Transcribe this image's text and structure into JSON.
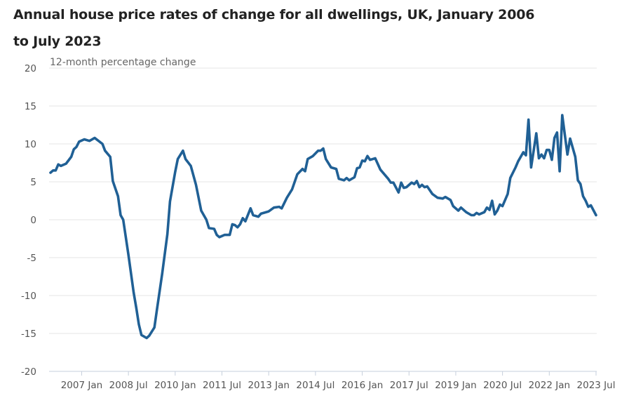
{
  "chart_data": {
    "type": "line",
    "title": "Annual house price rates of change for all dwellings, UK, January 2006 to July 2023",
    "ylabel": "12-month percentage change",
    "xlabel": "",
    "ylim": [
      -20,
      20
    ],
    "yticks": [
      "20",
      "15",
      "10",
      "5",
      "0",
      "-5",
      "-10",
      "-15",
      "-20"
    ],
    "xticks": [
      {
        "date": "2007-01",
        "label": "2007 Jan"
      },
      {
        "date": "2008-07",
        "label": "2008 Jul"
      },
      {
        "date": "2010-01",
        "label": "2010 Jan"
      },
      {
        "date": "2011-07",
        "label": "2011 Jul"
      },
      {
        "date": "2013-01",
        "label": "2013 Jan"
      },
      {
        "date": "2014-07",
        "label": "2014 Jul"
      },
      {
        "date": "2016-01",
        "label": "2016 Jan"
      },
      {
        "date": "2017-07",
        "label": "2017 Jul"
      },
      {
        "date": "2019-01",
        "label": "2019 Jan"
      },
      {
        "date": "2020-07",
        "label": "2020 Jul"
      },
      {
        "date": "2022-01",
        "label": "2022 Jan"
      },
      {
        "date": "2023-07",
        "label": "2023 Jul"
      }
    ],
    "xlim": [
      "2006-01",
      "2023-07"
    ],
    "grid": true,
    "line_color": "#206095",
    "series": [
      {
        "points": [
          [
            "2006-01",
            6.2
          ],
          [
            "2006-02",
            6.5
          ],
          [
            "2006-03",
            6.5
          ],
          [
            "2006-04",
            7.3
          ],
          [
            "2006-05",
            7.1
          ],
          [
            "2006-07",
            7.4
          ],
          [
            "2006-09",
            8.3
          ],
          [
            "2006-10",
            9.3
          ],
          [
            "2006-11",
            9.6
          ],
          [
            "2006-12",
            10.3
          ],
          [
            "2007-02",
            10.6
          ],
          [
            "2007-04",
            10.4
          ],
          [
            "2007-06",
            10.8
          ],
          [
            "2007-09",
            10.0
          ],
          [
            "2007-10",
            9.1
          ],
          [
            "2007-12",
            8.3
          ],
          [
            "2008-01",
            5.1
          ],
          [
            "2008-03",
            3.1
          ],
          [
            "2008-04",
            0.6
          ],
          [
            "2008-05",
            0.0
          ],
          [
            "2008-07",
            -4.6
          ],
          [
            "2008-09",
            -9.6
          ],
          [
            "2008-10",
            -11.6
          ],
          [
            "2008-11",
            -13.8
          ],
          [
            "2008-12",
            -15.2
          ],
          [
            "2009-02",
            -15.6
          ],
          [
            "2009-03",
            -15.3
          ],
          [
            "2009-05",
            -14.2
          ],
          [
            "2009-06",
            -11.8
          ],
          [
            "2009-08",
            -7.1
          ],
          [
            "2009-10",
            -1.9
          ],
          [
            "2009-11",
            2.4
          ],
          [
            "2010-01",
            6.3
          ],
          [
            "2010-02",
            8.0
          ],
          [
            "2010-04",
            9.1
          ],
          [
            "2010-05",
            8.0
          ],
          [
            "2010-07",
            7.1
          ],
          [
            "2010-09",
            4.6
          ],
          [
            "2010-11",
            1.2
          ],
          [
            "2011-01",
            0.0
          ],
          [
            "2011-02",
            -1.1
          ],
          [
            "2011-04",
            -1.2
          ],
          [
            "2011-05",
            -2.0
          ],
          [
            "2011-06",
            -2.3
          ],
          [
            "2011-08",
            -2.0
          ],
          [
            "2011-10",
            -2.0
          ],
          [
            "2011-11",
            -0.6
          ],
          [
            "2011-12",
            -0.7
          ],
          [
            "2012-01",
            -1.0
          ],
          [
            "2012-02",
            -0.6
          ],
          [
            "2012-03",
            0.2
          ],
          [
            "2012-04",
            -0.2
          ],
          [
            "2012-06",
            1.5
          ],
          [
            "2012-07",
            0.6
          ],
          [
            "2012-09",
            0.4
          ],
          [
            "2012-10",
            0.8
          ],
          [
            "2013-01",
            1.1
          ],
          [
            "2013-03",
            1.6
          ],
          [
            "2013-05",
            1.7
          ],
          [
            "2013-06",
            1.5
          ],
          [
            "2013-08",
            2.9
          ],
          [
            "2013-10",
            4.0
          ],
          [
            "2013-12",
            6.0
          ],
          [
            "2014-02",
            6.7
          ],
          [
            "2014-03",
            6.4
          ],
          [
            "2014-04",
            8.0
          ],
          [
            "2014-06",
            8.4
          ],
          [
            "2014-08",
            9.1
          ],
          [
            "2014-09",
            9.1
          ],
          [
            "2014-10",
            9.4
          ],
          [
            "2014-11",
            8.0
          ],
          [
            "2015-01",
            6.9
          ],
          [
            "2015-03",
            6.7
          ],
          [
            "2015-04",
            5.4
          ],
          [
            "2015-06",
            5.2
          ],
          [
            "2015-07",
            5.5
          ],
          [
            "2015-08",
            5.2
          ],
          [
            "2015-10",
            5.6
          ],
          [
            "2015-11",
            6.8
          ],
          [
            "2015-12",
            6.9
          ],
          [
            "2016-01",
            7.8
          ],
          [
            "2016-02",
            7.7
          ],
          [
            "2016-03",
            8.4
          ],
          [
            "2016-04",
            7.9
          ],
          [
            "2016-06",
            8.1
          ],
          [
            "2016-08",
            6.6
          ],
          [
            "2016-11",
            5.4
          ],
          [
            "2016-12",
            4.9
          ],
          [
            "2017-01",
            4.9
          ],
          [
            "2017-03",
            3.6
          ],
          [
            "2017-04",
            4.9
          ],
          [
            "2017-05",
            4.2
          ],
          [
            "2017-06",
            4.3
          ],
          [
            "2017-08",
            4.9
          ],
          [
            "2017-09",
            4.7
          ],
          [
            "2017-10",
            5.1
          ],
          [
            "2017-11",
            4.3
          ],
          [
            "2017-12",
            4.6
          ],
          [
            "2018-01",
            4.3
          ],
          [
            "2018-02",
            4.4
          ],
          [
            "2018-04",
            3.4
          ],
          [
            "2018-06",
            2.9
          ],
          [
            "2018-08",
            2.8
          ],
          [
            "2018-09",
            3.0
          ],
          [
            "2018-11",
            2.6
          ],
          [
            "2018-12",
            1.8
          ],
          [
            "2019-02",
            1.2
          ],
          [
            "2019-03",
            1.6
          ],
          [
            "2019-05",
            1.0
          ],
          [
            "2019-07",
            0.6
          ],
          [
            "2019-08",
            0.6
          ],
          [
            "2019-09",
            0.9
          ],
          [
            "2019-10",
            0.7
          ],
          [
            "2019-12",
            1.0
          ],
          [
            "2020-01",
            1.6
          ],
          [
            "2020-02",
            1.3
          ],
          [
            "2020-03",
            2.5
          ],
          [
            "2020-04",
            0.7
          ],
          [
            "2020-05",
            1.2
          ],
          [
            "2020-06",
            2.0
          ],
          [
            "2020-07",
            1.8
          ],
          [
            "2020-09",
            3.4
          ],
          [
            "2020-10",
            5.5
          ],
          [
            "2020-12",
            6.9
          ],
          [
            "2021-01",
            7.7
          ],
          [
            "2021-03",
            8.9
          ],
          [
            "2021-04",
            8.5
          ],
          [
            "2021-05",
            13.2
          ],
          [
            "2021-06",
            6.9
          ],
          [
            "2021-08",
            11.4
          ],
          [
            "2021-09",
            8.1
          ],
          [
            "2021-10",
            8.6
          ],
          [
            "2021-11",
            8.1
          ],
          [
            "2021-12",
            9.2
          ],
          [
            "2022-01",
            9.2
          ],
          [
            "2022-02",
            7.9
          ],
          [
            "2022-03",
            10.8
          ],
          [
            "2022-04",
            11.5
          ],
          [
            "2022-05",
            6.4
          ],
          [
            "2022-06",
            13.8
          ],
          [
            "2022-08",
            8.6
          ],
          [
            "2022-09",
            10.7
          ],
          [
            "2022-11",
            8.3
          ],
          [
            "2022-12",
            5.2
          ],
          [
            "2023-01",
            4.7
          ],
          [
            "2023-02",
            3.1
          ],
          [
            "2023-03",
            2.5
          ],
          [
            "2023-04",
            1.7
          ],
          [
            "2023-05",
            1.9
          ],
          [
            "2023-07",
            0.6
          ]
        ]
      }
    ]
  }
}
